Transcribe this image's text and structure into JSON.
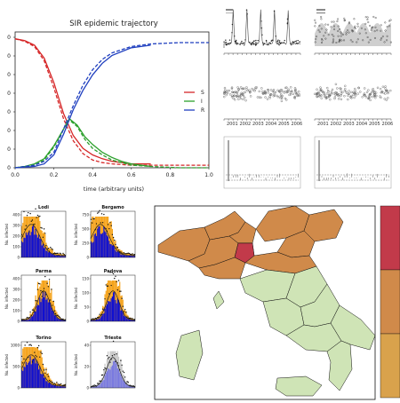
{
  "colors": {
    "S": "#d62728",
    "I": "#2ca02c",
    "R": "#1f3fbf",
    "orange": "#f5a31a",
    "blue": "#1010d0",
    "dark": "#222222",
    "map_high": "#c23a4a",
    "map_mid": "#d08a4a",
    "map_low": "#cfe4b6",
    "map_border": "#111111"
  },
  "chart_data": [
    {
      "type": "line",
      "title": "SIR epidemic trajectory",
      "xlabel": "time (arbitrary units)",
      "ylabel": "",
      "xlim": [
        0.0,
        1.0
      ],
      "ylim": [
        0.0,
        1.0
      ],
      "x_ticks": [
        "0.0",
        "0.2",
        "0.4",
        "0.6",
        "0.8",
        "1.0"
      ],
      "y_ticks": [
        "0",
        "0",
        "0",
        "0",
        "0",
        "0",
        "0",
        "0"
      ],
      "legend_position": "center-right",
      "legend": [
        "S",
        "I",
        "R"
      ],
      "series": [
        {
          "name": "S",
          "style": "solid",
          "x": [
            0.0,
            0.05,
            0.1,
            0.15,
            0.2,
            0.25,
            0.3,
            0.35,
            0.4,
            0.45,
            0.5,
            0.6,
            0.7
          ],
          "y": [
            1.0,
            0.985,
            0.95,
            0.85,
            0.66,
            0.42,
            0.25,
            0.15,
            0.1,
            0.07,
            0.05,
            0.03,
            0.03
          ]
        },
        {
          "name": "S",
          "style": "dashed",
          "x": [
            0.0,
            0.05,
            0.1,
            0.15,
            0.2,
            0.25,
            0.3,
            0.35,
            0.4,
            0.45,
            0.5,
            0.6,
            0.7,
            0.85,
            1.0
          ],
          "y": [
            1.0,
            0.98,
            0.94,
            0.83,
            0.62,
            0.38,
            0.21,
            0.11,
            0.06,
            0.04,
            0.03,
            0.02,
            0.02,
            0.02,
            0.02
          ]
        },
        {
          "name": "I",
          "style": "solid",
          "x": [
            0.0,
            0.05,
            0.1,
            0.15,
            0.2,
            0.25,
            0.28,
            0.32,
            0.36,
            0.4,
            0.45,
            0.5,
            0.55,
            0.6,
            0.7
          ],
          "y": [
            0.0,
            0.01,
            0.03,
            0.07,
            0.17,
            0.3,
            0.38,
            0.33,
            0.24,
            0.18,
            0.12,
            0.08,
            0.05,
            0.03,
            0.01
          ]
        },
        {
          "name": "I",
          "style": "dashed",
          "x": [
            0.0,
            0.05,
            0.1,
            0.15,
            0.2,
            0.25,
            0.28,
            0.32,
            0.36,
            0.4,
            0.45,
            0.5,
            0.55,
            0.6,
            0.7,
            0.85,
            1.0
          ],
          "y": [
            0.0,
            0.01,
            0.02,
            0.06,
            0.16,
            0.3,
            0.37,
            0.32,
            0.22,
            0.15,
            0.1,
            0.06,
            0.04,
            0.02,
            0.01,
            0.0,
            0.0
          ]
        },
        {
          "name": "R",
          "style": "solid",
          "x": [
            0.0,
            0.1,
            0.15,
            0.2,
            0.25,
            0.3,
            0.35,
            0.4,
            0.45,
            0.5,
            0.6,
            0.7
          ],
          "y": [
            0.0,
            0.01,
            0.03,
            0.1,
            0.26,
            0.45,
            0.6,
            0.72,
            0.81,
            0.87,
            0.93,
            0.95
          ]
        },
        {
          "name": "R",
          "style": "dashed",
          "x": [
            0.0,
            0.1,
            0.15,
            0.2,
            0.25,
            0.3,
            0.35,
            0.4,
            0.45,
            0.5,
            0.6,
            0.7,
            0.85,
            1.0
          ],
          "y": [
            0.0,
            0.02,
            0.05,
            0.12,
            0.3,
            0.48,
            0.64,
            0.76,
            0.84,
            0.89,
            0.94,
            0.96,
            0.97,
            0.97
          ]
        }
      ]
    },
    {
      "type": "scatter",
      "title": "",
      "grid_layout": "3 rows x 2 columns of small diagnostic panels",
      "x_ticks": [
        "2001",
        "2002",
        "2003",
        "2004",
        "2005",
        "2006"
      ],
      "panels": [
        {
          "kind": "seasonal-peaks",
          "peaks": [
            0.12,
            0.3,
            0.48,
            0.66,
            0.84
          ]
        },
        {
          "kind": "seasonal-band"
        },
        {
          "kind": "noise-scatter"
        },
        {
          "kind": "noise-scatter"
        },
        {
          "kind": "autocorrelation",
          "first_spike": 1.0
        },
        {
          "kind": "autocorrelation",
          "first_spike": 1.0
        }
      ]
    },
    {
      "type": "bar",
      "title": "",
      "ylabel": "No. infected",
      "cities": [
        {
          "name": "Lodi",
          "y_ticks": [
            "400",
            "300",
            "200",
            "100",
            "0"
          ],
          "shape": "early-decay"
        },
        {
          "name": "Bergamo",
          "y_ticks": [
            "750",
            "500",
            "250",
            "0"
          ],
          "shape": "early-decay"
        },
        {
          "name": "Parma",
          "y_ticks": [
            "400",
            "300",
            "200",
            "100",
            "0"
          ],
          "shape": "hump"
        },
        {
          "name": "Padova",
          "y_ticks": [
            "150",
            "100",
            "50",
            "0"
          ],
          "shape": "hump"
        },
        {
          "name": "Torino",
          "y_ticks": [
            "1000",
            "500",
            "0"
          ],
          "shape": "early-decay"
        },
        {
          "name": "Trieste",
          "y_ticks": [
            "40",
            "20",
            "0"
          ],
          "shape": "hump-grey"
        }
      ]
    },
    {
      "type": "heatmap",
      "title": "",
      "description_regions": "choropleth of Italian provinces",
      "colorbar_levels": 3
    }
  ]
}
